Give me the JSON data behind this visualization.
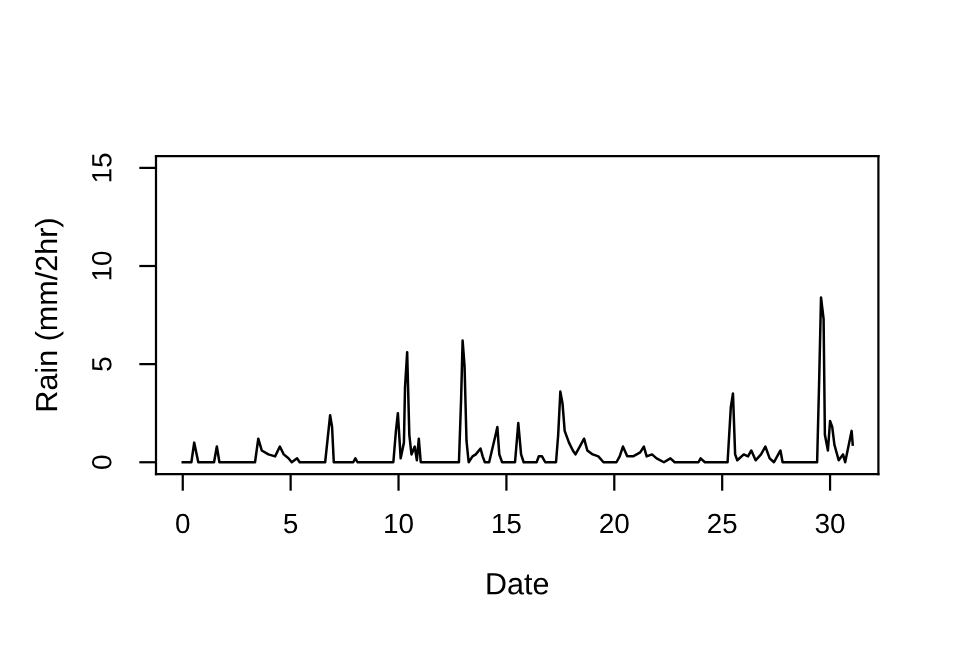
{
  "chart_data": {
    "type": "line",
    "xlabel": "Date",
    "ylabel": "Rain (mm/2hr)",
    "xlim": [
      -1.24,
      32.24
    ],
    "ylim": [
      -0.6,
      15.6
    ],
    "xticks": [
      0,
      5,
      10,
      15,
      20,
      25,
      30
    ],
    "yticks": [
      0,
      5,
      10,
      15
    ],
    "grid": false,
    "marker": "none",
    "line_style": "solid",
    "series": [
      {
        "color": "#000000",
        "x": [
          0.0,
          0.4,
          0.53,
          0.72,
          1.45,
          1.58,
          1.7,
          3.35,
          3.5,
          3.66,
          3.97,
          4.28,
          4.5,
          4.68,
          4.9,
          5.05,
          5.3,
          5.42,
          6.6,
          6.83,
          6.92,
          7.0,
          7.9,
          8.0,
          8.1,
          9.76,
          9.88,
          9.97,
          10.1,
          10.25,
          10.3,
          10.4,
          10.5,
          10.6,
          10.75,
          10.85,
          10.94,
          11.03,
          12.8,
          12.9,
          12.97,
          13.06,
          13.15,
          13.25,
          13.43,
          13.58,
          13.8,
          13.9,
          14.0,
          14.2,
          14.5,
          14.58,
          14.67,
          14.8,
          15.4,
          15.55,
          15.68,
          15.8,
          16.4,
          16.5,
          16.65,
          16.8,
          17.3,
          17.4,
          17.5,
          17.6,
          17.7,
          17.9,
          18.08,
          18.2,
          18.4,
          18.6,
          18.75,
          19.0,
          19.26,
          19.5,
          20.1,
          20.25,
          20.4,
          20.6,
          20.87,
          21.2,
          21.37,
          21.5,
          21.75,
          21.96,
          22.3,
          22.6,
          22.8,
          23.9,
          24.0,
          24.2,
          25.25,
          25.4,
          25.5,
          25.6,
          25.7,
          26.0,
          26.2,
          26.35,
          26.55,
          26.8,
          27.0,
          27.2,
          27.4,
          27.7,
          27.8,
          29.4,
          29.5,
          29.58,
          29.7,
          29.76,
          29.9,
          30.0,
          30.1,
          30.2,
          30.4,
          30.6,
          30.7,
          30.85,
          31.0,
          31.05
        ],
        "values": [
          0,
          0,
          1.0,
          0,
          0,
          0.8,
          0,
          0,
          1.2,
          0.6,
          0.4,
          0.3,
          0.8,
          0.4,
          0.2,
          0,
          0.2,
          0,
          0,
          2.4,
          1.8,
          0,
          0,
          0.2,
          0,
          0,
          1.6,
          2.5,
          0.2,
          1.0,
          3.8,
          5.6,
          1.4,
          0.4,
          0.8,
          0.1,
          1.2,
          0,
          0,
          3.2,
          6.2,
          4.9,
          1.1,
          0,
          0.3,
          0.4,
          0.7,
          0.3,
          0,
          0,
          1.4,
          1.8,
          0.4,
          0,
          0,
          2.0,
          0.4,
          0,
          0,
          0.3,
          0.3,
          0,
          0,
          1.4,
          3.6,
          3.0,
          1.6,
          1.0,
          0.6,
          0.4,
          0.8,
          1.2,
          0.6,
          0.4,
          0.3,
          0,
          0,
          0.3,
          0.8,
          0.3,
          0.3,
          0.5,
          0.8,
          0.3,
          0.4,
          0.2,
          0,
          0.2,
          0,
          0,
          0.2,
          0,
          0,
          2.8,
          3.5,
          0.4,
          0.1,
          0.4,
          0.3,
          0.6,
          0.1,
          0.4,
          0.8,
          0.2,
          0,
          0.6,
          0,
          0,
          4.4,
          8.4,
          7.3,
          1.4,
          0.6,
          2.1,
          1.8,
          0.9,
          0.1,
          0.4,
          0,
          0.8,
          1.6,
          0.9
        ]
      }
    ]
  }
}
